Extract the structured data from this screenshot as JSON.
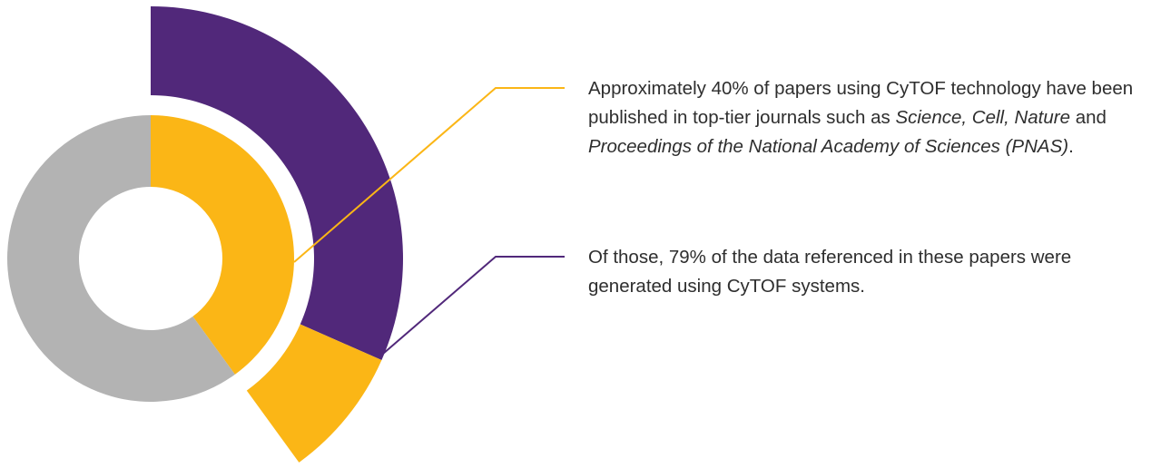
{
  "chart_data": [
    {
      "type": "pie",
      "title": "",
      "slices": [
        {
          "label": "",
          "value": 40,
          "color": "#fbb616"
        },
        {
          "label": "",
          "value": 60,
          "color": "#b3b3b3"
        }
      ]
    },
    {
      "type": "pie",
      "title": "",
      "slices": [
        {
          "label": "",
          "value": 79,
          "color": "#51287a"
        },
        {
          "label": "",
          "value": 21,
          "color": "#fbb616"
        }
      ]
    }
  ],
  "colors": {
    "gold": "#fbb616",
    "gray": "#b3b3b3",
    "purple": "#51287a",
    "text": "#2e2e2e"
  },
  "callouts": [
    {
      "line_color": "#fbb616",
      "parts": [
        {
          "text": "Approximately 40% of papers using CyTOF technology have been published in top-tier journals such as ",
          "italic": false
        },
        {
          "text": "Science, Cell, Nature",
          "italic": true
        },
        {
          "text": " and ",
          "italic": false
        },
        {
          "text": "Proceedings of the National Academy of Sciences (PNAS)",
          "italic": true
        },
        {
          "text": ".",
          "italic": false
        }
      ]
    },
    {
      "line_color": "#51287a",
      "parts": [
        {
          "text": "Of those, 79% of the data referenced in these papers were generated using CyTOF systems.",
          "italic": false
        }
      ]
    }
  ]
}
